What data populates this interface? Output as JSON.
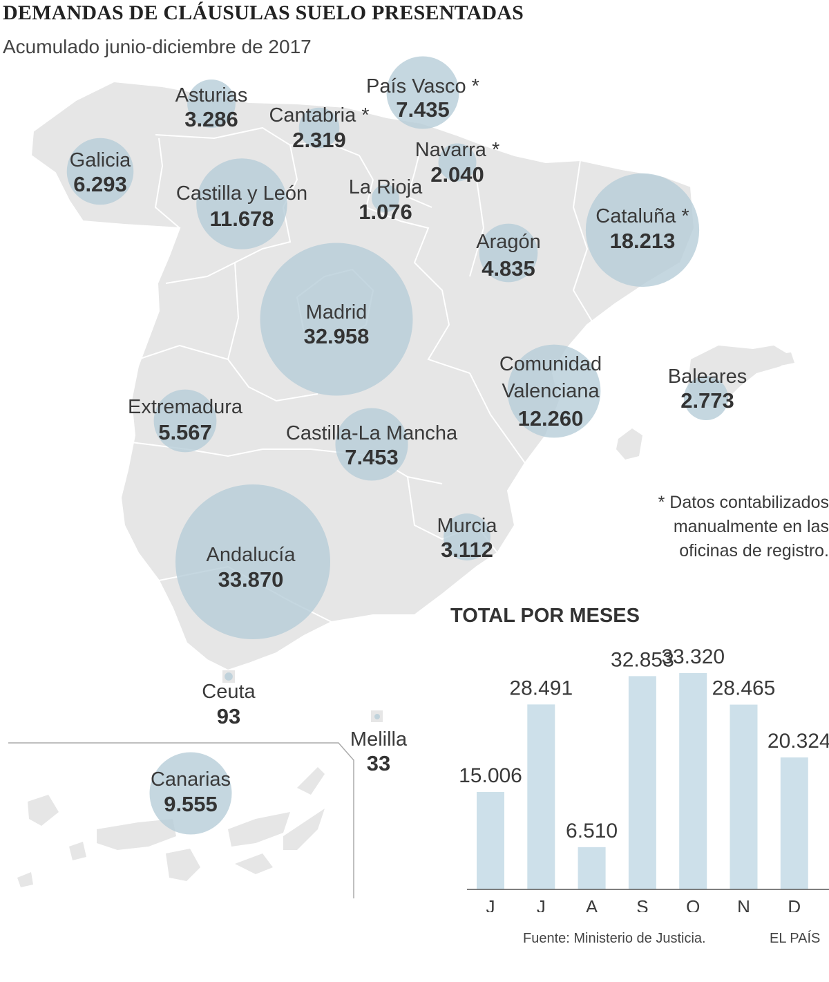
{
  "title": "DEMANDAS DE CLÁUSULAS SUELO PRESENTADAS",
  "subtitle": "Acumulado junio-diciembre de 2017",
  "colors": {
    "land": "#e6e6e6",
    "border": "#ffffff",
    "bubble": "#b7cdd8",
    "bar": "#cde0ea"
  },
  "regions": [
    {
      "name": "Asturias",
      "value": "3.286"
    },
    {
      "name": "Cantabria *",
      "value": "2.319"
    },
    {
      "name": "País Vasco *",
      "value": "7.435"
    },
    {
      "name": "Galicia",
      "value": "6.293"
    },
    {
      "name": "Navarra *",
      "value": "2.040"
    },
    {
      "name": "Castilla y León",
      "value": "11.678"
    },
    {
      "name": "La Rioja",
      "value": "1.076"
    },
    {
      "name": "Cataluña *",
      "value": "18.213"
    },
    {
      "name": "Aragón",
      "value": "4.835"
    },
    {
      "name": "Madrid",
      "value": "32.958"
    },
    {
      "name": "Comunidad Valenciana",
      "value": "12.260"
    },
    {
      "name": "Baleares",
      "value": "2.773"
    },
    {
      "name": "Extremadura",
      "value": "5.567"
    },
    {
      "name": "Castilla-La Mancha",
      "value": "7.453"
    },
    {
      "name": "Murcia",
      "value": "3.112"
    },
    {
      "name": "Andalucía",
      "value": "33.870"
    },
    {
      "name": "Ceuta",
      "value": "93"
    },
    {
      "name": "Melilla",
      "value": "33"
    },
    {
      "name": "Canarias",
      "value": "9.555"
    }
  ],
  "footnote": "* Datos contabilizados manualmente en las oficinas de registro.",
  "chart_data": {
    "type": "bar",
    "title": "TOTAL POR MESES",
    "categories": [
      "J",
      "J",
      "A",
      "S",
      "O",
      "N",
      "D"
    ],
    "values": [
      15006,
      28491,
      6510,
      32853,
      33320,
      28465,
      20324
    ],
    "value_labels": [
      "15.006",
      "28.491",
      "6.510",
      "32.853",
      "33.320",
      "28.465",
      "20.324"
    ],
    "ylim": [
      0,
      33320
    ],
    "grid": false,
    "legend": "none"
  },
  "source": "Fuente: Ministerio de Justicia.",
  "credit": "EL PAÍS"
}
